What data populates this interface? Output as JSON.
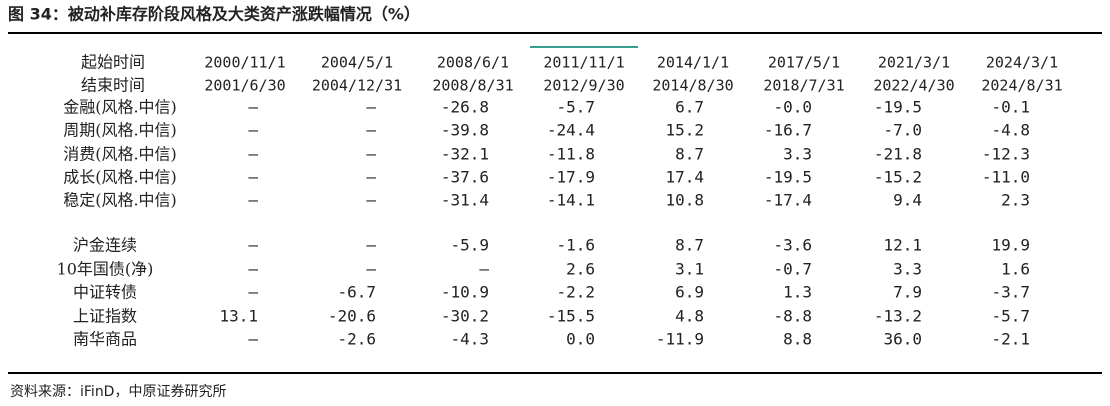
{
  "title": "图 34：被动补库存阶段风格及大类资产涨跌幅情况（%）",
  "table": {
    "header": [
      [
        "起始时间",
        "结束时间"
      ],
      [
        "2000/11/1",
        "2001/6/30"
      ],
      [
        "2004/5/1",
        "2004/12/31"
      ],
      [
        "2008/6/1",
        "2008/8/31"
      ],
      [
        "2011/11/1",
        "2012/9/30"
      ],
      [
        "2014/1/1",
        "2014/8/30"
      ],
      [
        "2017/5/1",
        "2018/7/31"
      ],
      [
        "2021/3/1",
        "2022/4/30"
      ],
      [
        "2024/3/1",
        "2024/8/31"
      ]
    ],
    "rows": [
      {
        "label": "金融(风格.中信)",
        "cells": [
          "–",
          "–",
          "-26.8",
          "-5.7",
          "6.7",
          "-0.0",
          "-19.5",
          "-0.1"
        ]
      },
      {
        "label": "周期(风格.中信)",
        "cells": [
          "–",
          "–",
          "-39.8",
          "-24.4",
          "15.2",
          "-16.7",
          "-7.0",
          "-4.8"
        ]
      },
      {
        "label": "消费(风格.中信)",
        "cells": [
          "–",
          "–",
          "-32.1",
          "-11.8",
          "8.7",
          "3.3",
          "-21.8",
          "-12.3"
        ]
      },
      {
        "label": "成长(风格.中信)",
        "cells": [
          "–",
          "–",
          "-37.6",
          "-17.9",
          "17.4",
          "-19.5",
          "-15.2",
          "-11.0"
        ]
      },
      {
        "label": "稳定(风格.中信)",
        "cells": [
          "–",
          "–",
          "-31.4",
          "-14.1",
          "10.8",
          "-17.4",
          "9.4",
          "2.3"
        ]
      },
      {
        "label": "沪金连续",
        "cells": [
          "–",
          "–",
          "-5.9",
          "-1.6",
          "8.7",
          "-3.6",
          "12.1",
          "19.9"
        ]
      },
      {
        "label": "10年国债(净)",
        "cells": [
          "–",
          "–",
          "–",
          "2.6",
          "3.1",
          "-0.7",
          "3.3",
          "1.6"
        ]
      },
      {
        "label": "中证转债",
        "cells": [
          "–",
          "-6.7",
          "-10.9",
          "-2.2",
          "6.9",
          "1.3",
          "7.9",
          "-3.7"
        ]
      },
      {
        "label": "上证指数",
        "cells": [
          "13.1",
          "-20.6",
          "-30.2",
          "-15.5",
          "4.8",
          "-8.8",
          "-13.2",
          "-5.7"
        ]
      },
      {
        "label": "南华商品",
        "cells": [
          "–",
          "-2.6",
          "-4.3",
          "0.0",
          "-11.9",
          "8.8",
          "36.0",
          "-2.1"
        ]
      }
    ]
  },
  "source": "资料来源：iFinD，中原证券研究所"
}
